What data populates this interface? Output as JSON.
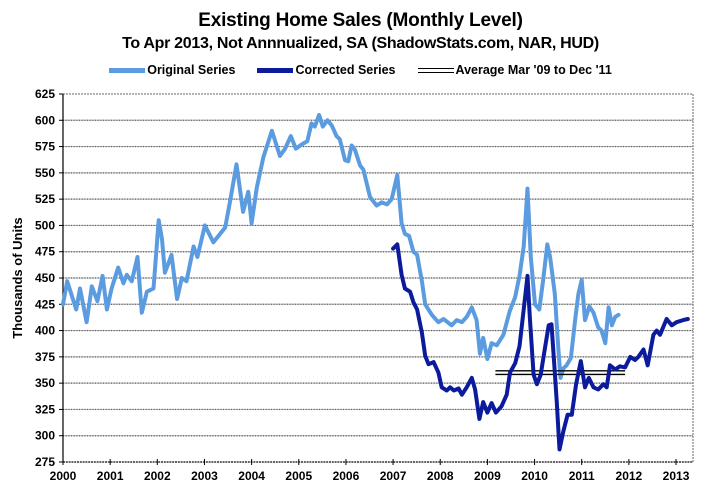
{
  "chart_data": {
    "type": "line",
    "title": "Existing Home Sales (Monthly Level)",
    "subtitle": "To Apr 2013, Not Annnualized, SA (ShadowStats.com, NAR, HUD)",
    "xlabel": "",
    "ylabel": "Thousands of Units",
    "xlim": [
      2000,
      2013.36
    ],
    "ylim": [
      275,
      625
    ],
    "x_ticks": [
      2000,
      2001,
      2002,
      2003,
      2004,
      2005,
      2006,
      2007,
      2008,
      2009,
      2010,
      2011,
      2012,
      2013
    ],
    "x_tick_labels": [
      "2000",
      "2001",
      "2002",
      "2003",
      "2004",
      "2005",
      "2006",
      "2007",
      "2008",
      "2009",
      "2010",
      "2011",
      "2012",
      "2013"
    ],
    "y_ticks": [
      275,
      300,
      325,
      350,
      375,
      400,
      425,
      450,
      475,
      500,
      525,
      550,
      575,
      600,
      625
    ],
    "y_tick_labels": [
      "275",
      "300",
      "325",
      "350",
      "375",
      "400",
      "425",
      "450",
      "475",
      "500",
      "525",
      "550",
      "575",
      "600",
      "625"
    ],
    "grid": "horizontal",
    "legend_position": "top-center",
    "series": [
      {
        "name": "Original Series",
        "color": "#5b9be0",
        "x": [
          2000.0,
          2000.09,
          2000.28,
          2000.36,
          2000.5,
          2000.61,
          2000.73,
          2000.84,
          2000.93,
          2001.03,
          2001.17,
          2001.28,
          2001.35,
          2001.46,
          2001.58,
          2001.67,
          2001.78,
          2001.92,
          2002.03,
          2002.1,
          2002.16,
          2002.3,
          2002.42,
          2002.52,
          2002.62,
          2002.77,
          2002.85,
          2003.01,
          2003.19,
          2003.44,
          2003.54,
          2003.68,
          2003.82,
          2003.93,
          2004.0,
          2004.11,
          2004.25,
          2004.43,
          2004.6,
          2004.71,
          2004.83,
          2004.94,
          2005.06,
          2005.18,
          2005.27,
          2005.34,
          2005.43,
          2005.51,
          2005.61,
          2005.7,
          2005.8,
          2005.87,
          2005.98,
          2006.05,
          2006.12,
          2006.19,
          2006.3,
          2006.37,
          2006.51,
          2006.65,
          2006.76,
          2006.87,
          2006.97,
          2007.09,
          2007.18,
          2007.25,
          2007.34,
          2007.43,
          2007.51,
          2007.61,
          2007.68,
          2007.82,
          2007.96,
          2008.07,
          2008.24,
          2008.35,
          2008.46,
          2008.56,
          2008.67,
          2008.77,
          2008.84,
          2008.91,
          2009.0,
          2009.09,
          2009.2,
          2009.34,
          2009.47,
          2009.59,
          2009.68,
          2009.77,
          2009.85,
          2009.92,
          2010.01,
          2010.1,
          2010.18,
          2010.27,
          2010.33,
          2010.43,
          2010.5,
          2010.55,
          2010.61,
          2010.68,
          2010.77,
          2010.86,
          2010.93,
          2011.0,
          2011.07,
          2011.16,
          2011.25,
          2011.35,
          2011.42,
          2011.5,
          2011.57,
          2011.64,
          2011.71,
          2011.78
        ],
        "values": [
          425,
          447,
          420,
          440,
          408,
          442,
          428,
          452,
          420,
          440,
          460,
          445,
          453,
          447,
          470,
          417,
          437,
          440,
          505,
          487,
          455,
          472,
          430,
          450,
          447,
          480,
          470,
          500,
          484,
          498,
          522,
          558,
          513,
          532,
          502,
          536,
          565,
          590,
          566,
          573,
          585,
          573,
          577,
          580,
          597,
          594,
          605,
          594,
          600,
          595,
          585,
          582,
          562,
          561,
          576,
          572,
          557,
          553,
          527,
          519,
          522,
          520,
          525,
          548,
          502,
          492,
          490,
          475,
          472,
          447,
          425,
          415,
          408,
          411,
          405,
          410,
          408,
          413,
          422,
          410,
          378,
          393,
          373,
          388,
          386,
          396,
          418,
          432,
          452,
          480,
          535,
          470,
          425,
          420,
          447,
          482,
          470,
          435,
          386,
          355,
          364,
          367,
          374,
          410,
          435,
          448,
          410,
          423,
          417,
          403,
          400,
          388,
          422,
          405,
          413,
          415
        ]
      },
      {
        "name": "Corrected Series",
        "color": "#0c1a9c",
        "x": [
          2007.0,
          2007.09,
          2007.18,
          2007.25,
          2007.36,
          2007.43,
          2007.51,
          2007.61,
          2007.68,
          2007.75,
          2007.86,
          2007.96,
          2008.03,
          2008.14,
          2008.21,
          2008.29,
          2008.39,
          2008.46,
          2008.56,
          2008.67,
          2008.74,
          2008.83,
          2008.91,
          2009.0,
          2009.09,
          2009.18,
          2009.3,
          2009.41,
          2009.48,
          2009.59,
          2009.68,
          2009.77,
          2009.85,
          2009.9,
          2009.98,
          2010.05,
          2010.13,
          2010.22,
          2010.3,
          2010.36,
          2010.41,
          2010.47,
          2010.53,
          2010.61,
          2010.7,
          2010.79,
          2010.88,
          2010.98,
          2011.07,
          2011.15,
          2011.25,
          2011.35,
          2011.46,
          2011.53,
          2011.6,
          2011.71,
          2011.81,
          2011.92,
          2012.03,
          2012.13,
          2012.2,
          2012.31,
          2012.4,
          2012.52,
          2012.59,
          2012.66,
          2012.8,
          2012.91,
          2013.01,
          2013.15,
          2013.25
        ],
        "values": [
          478,
          482,
          453,
          440,
          437,
          427,
          420,
          398,
          376,
          368,
          370,
          360,
          346,
          343,
          346,
          343,
          345,
          339,
          346,
          355,
          344,
          316,
          332,
          322,
          331,
          322,
          328,
          339,
          360,
          369,
          385,
          420,
          452,
          413,
          358,
          349,
          358,
          383,
          405,
          406,
          373,
          333,
          287,
          304,
          320,
          320,
          349,
          371,
          346,
          355,
          346,
          344,
          349,
          346,
          367,
          363,
          366,
          365,
          375,
          372,
          375,
          382,
          367,
          396,
          400,
          396,
          411,
          405,
          408,
          410,
          411
        ]
      },
      {
        "name": "Average Mar '09 to Dec '11",
        "color": "#000000",
        "x": [
          2009.17,
          2011.92
        ],
        "values": [
          360,
          360
        ]
      }
    ]
  }
}
